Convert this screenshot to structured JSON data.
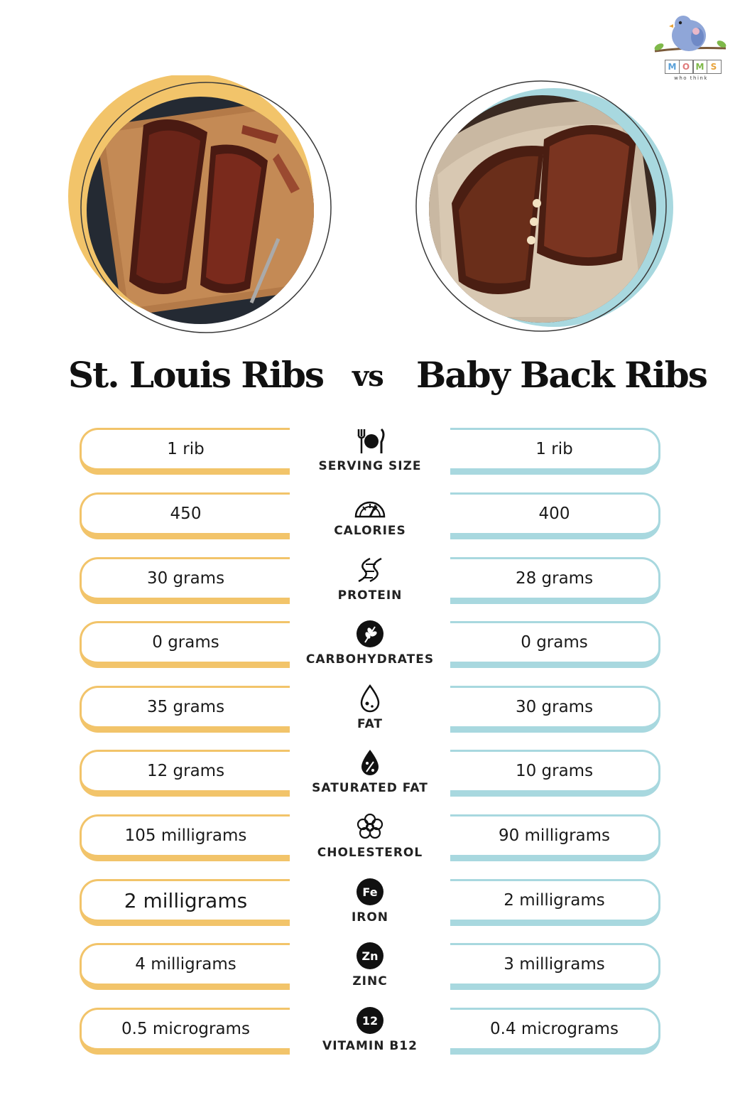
{
  "brand": {
    "blocks": [
      "M",
      "O",
      "M",
      "S"
    ],
    "tagline": "who think",
    "colors": {
      "bird": "#8fa6d8",
      "branch": "#7a5a3a",
      "leaf": "#7fb94a"
    }
  },
  "images": {
    "left": {
      "icon": "st-louis-ribs-photo",
      "ring_color": "#f2c46a"
    },
    "right": {
      "icon": "baby-back-ribs-photo",
      "ring_color": "#a8d8df"
    }
  },
  "title": {
    "left": "St. Louis Ribs",
    "vs": "vs",
    "right": "Baby Back Ribs"
  },
  "colors": {
    "left_accent": "#f2c46a",
    "right_accent": "#a8d8df",
    "text": "#111111"
  },
  "rows": [
    {
      "label": "SERVING SIZE",
      "icon": "utensils-plate-icon",
      "left": "1 rib",
      "right": "1 rib"
    },
    {
      "label": "CALORIES",
      "icon": "gauge-icon",
      "left": "450",
      "right": "400"
    },
    {
      "label": "PROTEIN",
      "icon": "dna-helix-icon",
      "left": "30 grams",
      "right": "28 grams"
    },
    {
      "label": "CARBOHYDRATES",
      "icon": "wheat-icon",
      "left": "0 grams",
      "right": "0 grams"
    },
    {
      "label": "FAT",
      "icon": "drop-icon",
      "left": "35 grams",
      "right": "30 grams"
    },
    {
      "label": "SATURATED FAT",
      "icon": "percent-drop-icon",
      "left": "12 grams",
      "right": "10 grams"
    },
    {
      "label": "CHOLESTEROL",
      "icon": "molecule-icon",
      "left": "105 milligrams",
      "right": "90 milligrams"
    },
    {
      "label": "IRON",
      "icon": "fe-badge-icon",
      "badge": "Fe",
      "left": "2 milligrams",
      "right": "2 milligrams"
    },
    {
      "label": "ZINC",
      "icon": "zn-badge-icon",
      "badge": "Zn",
      "left": "4 milligrams",
      "right": "3 milligrams"
    },
    {
      "label": "VITAMIN B12",
      "icon": "b12-badge-icon",
      "badge": "12",
      "left": "0.5 micrograms",
      "right": "0.4 micrograms"
    }
  ]
}
